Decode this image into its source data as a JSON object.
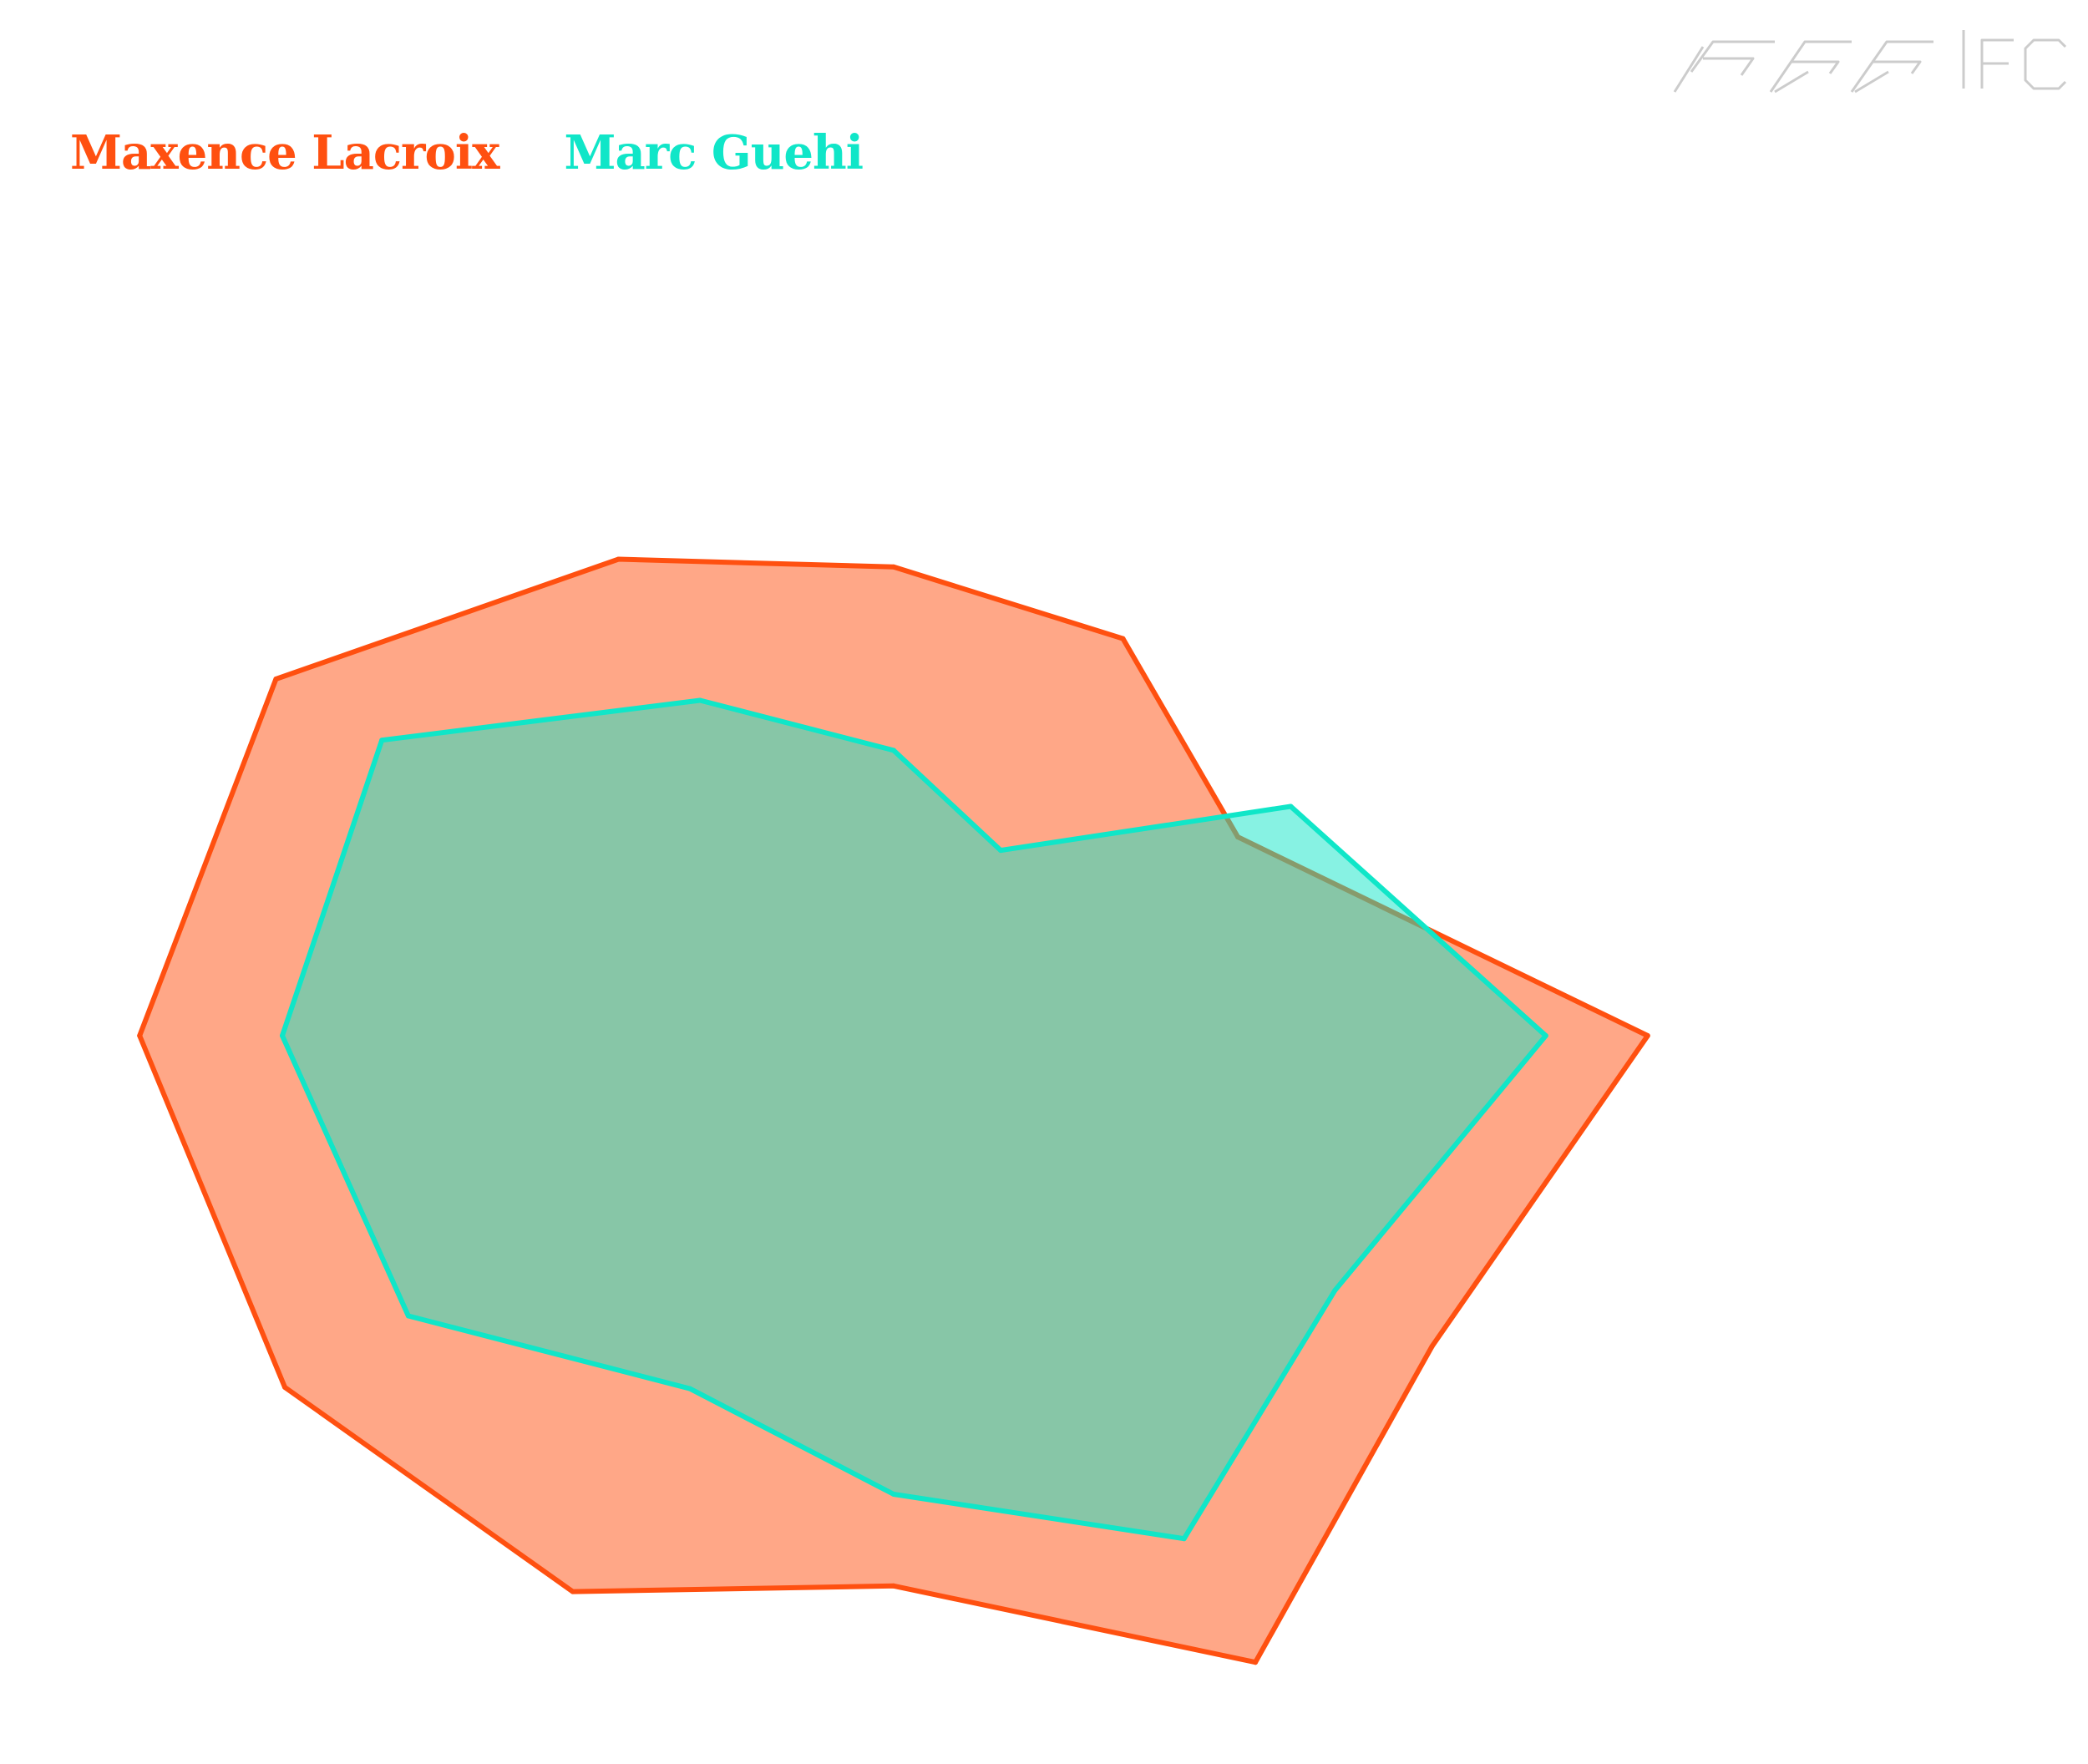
{
  "logo": {
    "icon": "pff-fc-logo",
    "text": "PFF FC",
    "color": "#cccccc"
  },
  "chart_data": {
    "type": "radar",
    "axes_count": 12,
    "rmax": 100,
    "start_angle_deg": 0,
    "direction": "counterclockwise",
    "grid": false,
    "axis_labels": false,
    "legend_position": "top-left",
    "series": [
      {
        "name": "Maxence Lacroix",
        "color": "#ff5010",
        "fill": "#ff5010",
        "fill_opacity": 0.5,
        "values": [
          74,
          39,
          45,
          46,
          54,
          70,
          74,
          69,
          63,
          54,
          71,
          61
        ]
      },
      {
        "name": "Marc Guehi",
        "color": "#10e6c8",
        "fill": "#10e6c8",
        "fill_opacity": 0.5,
        "values": [
          64,
          45,
          21,
          28,
          38,
          58,
          60,
          55,
          40,
          45,
          57,
          50
        ]
      }
    ]
  }
}
